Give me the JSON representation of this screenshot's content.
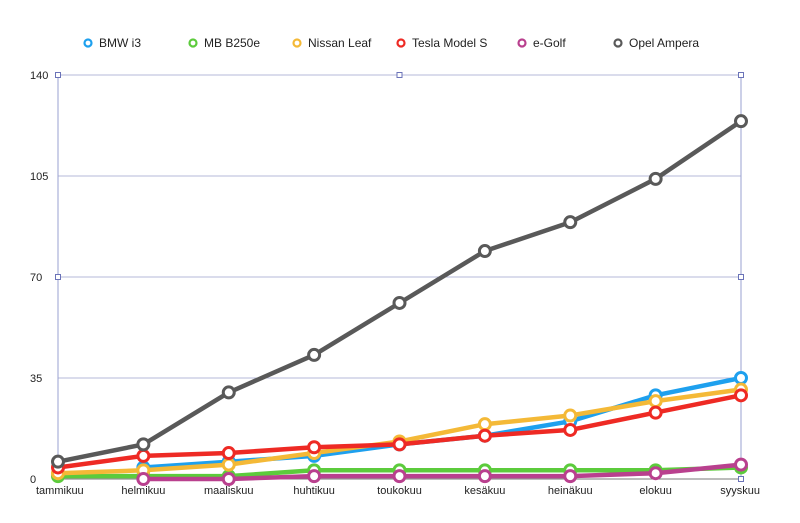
{
  "chart_data": {
    "type": "line",
    "title": "",
    "xlabel": "",
    "ylabel": "",
    "categories": [
      "tammikuu",
      "helmikuu",
      "maaliskuu",
      "huhtikuu",
      "toukokuu",
      "kesäkuu",
      "heinäkuu",
      "elokuu",
      "syyskuu"
    ],
    "ylim": [
      0,
      140
    ],
    "yticks": [
      0,
      35,
      70,
      105,
      140
    ],
    "grid": true,
    "legend_position": "top",
    "series": [
      {
        "name": "BMW i3",
        "color": "#1ea0ee",
        "values": [
          null,
          4,
          6,
          8,
          12,
          15,
          20,
          29,
          35
        ]
      },
      {
        "name": "MB B250e",
        "color": "#5ccb3c",
        "values": [
          1,
          1,
          1,
          3,
          3,
          3,
          3,
          3,
          4
        ]
      },
      {
        "name": "Nissan Leaf",
        "color": "#f4b937",
        "values": [
          2,
          3,
          5,
          9,
          13,
          19,
          22,
          27,
          31
        ]
      },
      {
        "name": "Tesla Model S",
        "color": "#ee2a24",
        "values": [
          4,
          8,
          9,
          11,
          12,
          15,
          17,
          23,
          29
        ]
      },
      {
        "name": "e-Golf",
        "color": "#b9408e",
        "values": [
          null,
          0,
          0,
          1,
          1,
          1,
          1,
          2,
          5
        ]
      },
      {
        "name": "Opel Ampera",
        "color": "#595959",
        "values": [
          6,
          12,
          30,
          43,
          61,
          79,
          89,
          104,
          124
        ]
      }
    ]
  }
}
